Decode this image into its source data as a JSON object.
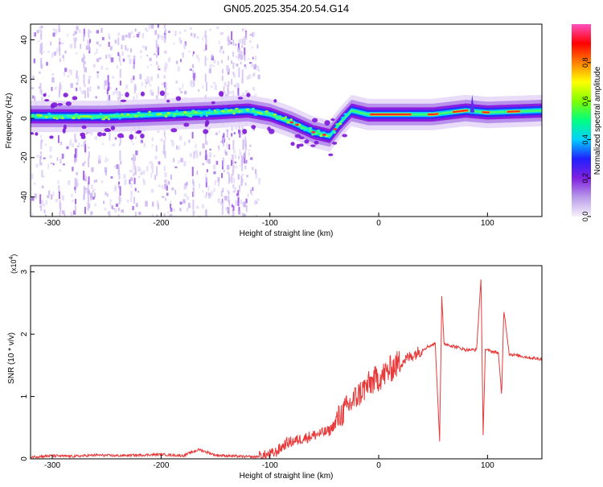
{
  "figure_title": "GN05.2025.354.20.54.G14",
  "colors": {
    "snr_line": "#e83a3a",
    "axis": "#000000",
    "spectrogram_background": "#ffffff"
  },
  "chart_data": [
    {
      "type": "heatmap",
      "title": "GN05.2025.354.20.54.G14",
      "xlabel": "Height of straight line (km)",
      "ylabel": "Frequency (Hz)",
      "xlim": [
        -320,
        150
      ],
      "ylim": [
        -50,
        48
      ],
      "x_ticks": [
        "-300",
        "-200",
        "-100",
        "0",
        "100"
      ],
      "y_ticks": [
        "-40",
        "-20",
        "0",
        "20",
        "40"
      ],
      "ridge": {
        "description_points_x": [
          -320,
          -250,
          -200,
          -150,
          -120,
          -100,
          -80,
          -60,
          -45,
          -35,
          -25,
          -10,
          0,
          50,
          80,
          100,
          150
        ],
        "frequency_hz": [
          1,
          1,
          2,
          3,
          4,
          2,
          -2,
          -7,
          -9,
          -2,
          4,
          2,
          2,
          2,
          4,
          3,
          4
        ]
      },
      "colorbar": {
        "label": "Normalized spectral amplitude",
        "range": [
          0,
          1
        ],
        "ticks": [
          "0.0",
          "0.2",
          "0.4",
          "0.6",
          "0.8"
        ],
        "colormap": [
          "#f6f1fb",
          "#b99be9",
          "#8020e0",
          "#2020ff",
          "#00d0ff",
          "#00ff80",
          "#80ff00",
          "#ffff00",
          "#ff8000",
          "#ff0000",
          "#ff50c0"
        ]
      },
      "grid": false,
      "legend": "none"
    },
    {
      "type": "line",
      "xlabel": "Height of straight line (km)",
      "ylabel": "SNR (10 * v/v)",
      "y_multiplier": "(x10",
      "y_multiplier_exp": "4",
      "y_multiplier_close": ")",
      "xlim": [
        -320,
        150
      ],
      "ylim": [
        0,
        3.1
      ],
      "x_ticks": [
        "-300",
        "-200",
        "-100",
        "0",
        "100"
      ],
      "y_ticks": [
        "0",
        "1",
        "2",
        "3"
      ],
      "series": [
        {
          "x": [
            -320,
            -300,
            -280,
            -260,
            -240,
            -220,
            -200,
            -180,
            -165,
            -150,
            -130,
            -115,
            -105,
            -95,
            -85,
            -75,
            -65,
            -55,
            -45,
            -35,
            -25,
            -15,
            -5,
            5,
            15,
            25,
            35,
            45,
            52,
            56,
            58,
            60,
            70,
            80,
            90,
            94,
            96,
            98,
            105,
            110,
            113,
            115,
            120,
            130,
            140,
            150
          ],
          "y": [
            0.03,
            0.05,
            0.04,
            0.06,
            0.05,
            0.06,
            0.07,
            0.05,
            0.15,
            0.06,
            0.04,
            0.03,
            0.05,
            0.1,
            0.25,
            0.3,
            0.35,
            0.4,
            0.45,
            0.7,
            0.9,
            1.1,
            1.25,
            1.35,
            1.5,
            1.6,
            1.7,
            1.8,
            1.85,
            0.3,
            2.6,
            1.85,
            1.8,
            1.75,
            1.75,
            2.9,
            0.4,
            1.75,
            1.72,
            1.7,
            1.0,
            2.4,
            1.68,
            1.65,
            1.62,
            1.6
          ]
        }
      ],
      "grid": false,
      "legend": "none"
    }
  ]
}
